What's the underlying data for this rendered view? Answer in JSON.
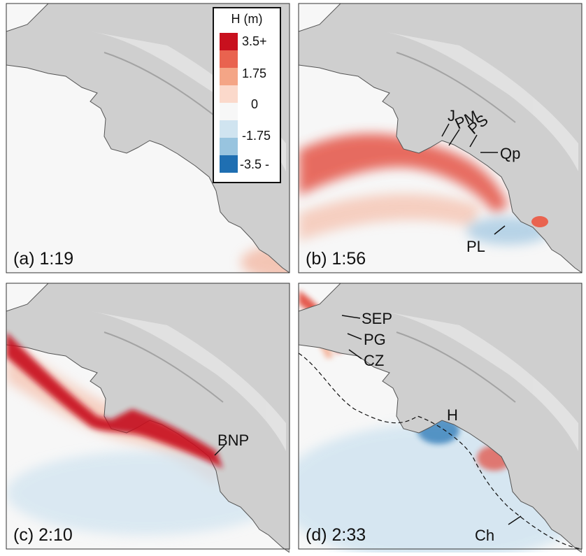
{
  "legend": {
    "title": "H (m)",
    "labels": [
      "3.5+",
      "1.75",
      "0",
      "-1.75",
      "-3.5 -"
    ]
  },
  "panels": [
    {
      "label": "(a) 1:19"
    },
    {
      "label": "(b) 1:56",
      "annotations": [
        "J",
        "PM",
        "PS",
        "Qp",
        "PL"
      ]
    },
    {
      "label": "(c) 2:10",
      "annotations": [
        "BNP"
      ]
    },
    {
      "label": "(d) 2:33",
      "annotations": [
        "SEP",
        "PG",
        "CZ",
        "H",
        "Ch"
      ]
    }
  ]
}
